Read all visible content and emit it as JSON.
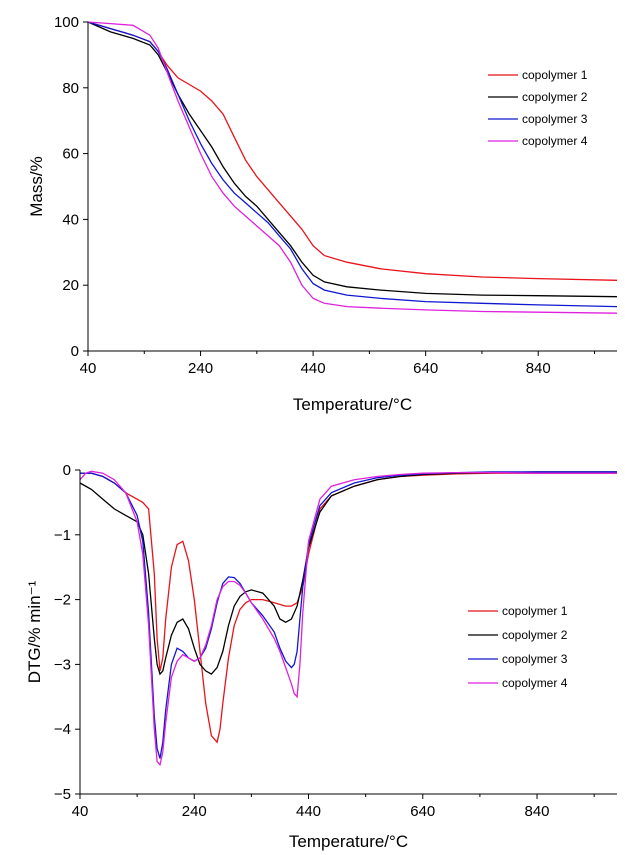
{
  "chart_data": [
    {
      "type": "line",
      "title": "",
      "xlabel": "Temperature/°C",
      "ylabel": "Mass/%",
      "xlim": [
        40,
        980
      ],
      "ylim": [
        0,
        100
      ],
      "xticks": [
        "40",
        "240",
        "440",
        "640",
        "840"
      ],
      "yticks": [
        "0",
        "20",
        "40",
        "60",
        "80",
        "100"
      ],
      "legend": "right",
      "grid": false,
      "series": [
        {
          "name": "copolymer 1",
          "color": "#e8131b",
          "x": [
            40,
            80,
            120,
            150,
            165,
            180,
            200,
            220,
            240,
            260,
            280,
            300,
            320,
            340,
            360,
            380,
            400,
            420,
            440,
            460,
            500,
            560,
            640,
            740,
            840,
            980
          ],
          "y": [
            100,
            98,
            96,
            94,
            91,
            87,
            83,
            81,
            79,
            76,
            72,
            65,
            58,
            53,
            49,
            45,
            41,
            37,
            32,
            29,
            27,
            25,
            23.5,
            22.5,
            22,
            21.5
          ]
        },
        {
          "name": "copolymer 2",
          "color": "#000000",
          "x": [
            40,
            80,
            120,
            150,
            165,
            180,
            200,
            220,
            240,
            260,
            280,
            300,
            320,
            340,
            360,
            380,
            400,
            420,
            440,
            460,
            500,
            560,
            640,
            740,
            840,
            980
          ],
          "y": [
            100,
            97,
            95,
            93,
            90,
            85,
            78,
            72,
            67,
            62,
            56,
            51,
            47,
            44,
            40,
            36,
            32,
            27,
            23,
            21,
            19.5,
            18.5,
            17.5,
            17,
            16.8,
            16.5
          ]
        },
        {
          "name": "copolymer 3",
          "color": "#1018cf",
          "x": [
            40,
            80,
            120,
            150,
            165,
            180,
            200,
            220,
            240,
            260,
            280,
            300,
            320,
            340,
            360,
            380,
            400,
            420,
            440,
            460,
            500,
            560,
            640,
            740,
            840,
            980
          ],
          "y": [
            100,
            98,
            96,
            94,
            91,
            86,
            78,
            70,
            63,
            57,
            52,
            48,
            45,
            42,
            39,
            35,
            31,
            25,
            20.5,
            18.5,
            17,
            16,
            15,
            14.5,
            14,
            13.5
          ]
        },
        {
          "name": "copolymer 4",
          "color": "#dd22dd",
          "x": [
            40,
            80,
            120,
            150,
            165,
            180,
            200,
            220,
            240,
            260,
            280,
            300,
            320,
            340,
            360,
            380,
            400,
            420,
            440,
            460,
            500,
            560,
            640,
            740,
            840,
            980
          ],
          "y": [
            100,
            99.5,
            99,
            96,
            92,
            85,
            76,
            68,
            60,
            53,
            48,
            44,
            41,
            38,
            35,
            32,
            27,
            20,
            16,
            14.5,
            13.5,
            13,
            12.5,
            12,
            11.8,
            11.5
          ]
        }
      ]
    },
    {
      "type": "line",
      "title": "",
      "xlabel": "Temperature/°C",
      "ylabel": "DTG/% min⁻¹",
      "xlim": [
        40,
        980
      ],
      "ylim": [
        -5,
        0
      ],
      "xticks": [
        "40",
        "240",
        "440",
        "640",
        "840"
      ],
      "yticks": [
        "0",
        "−1",
        "−2",
        "−3",
        "−4",
        "−5"
      ],
      "legend": "right",
      "grid": false,
      "series": [
        {
          "name": "copolymer 1",
          "color": "#e8131b",
          "x": [
            40,
            60,
            80,
            100,
            120,
            140,
            150,
            160,
            170,
            175,
            180,
            185,
            190,
            200,
            210,
            220,
            230,
            240,
            250,
            260,
            270,
            280,
            285,
            290,
            300,
            310,
            320,
            330,
            340,
            360,
            380,
            400,
            410,
            420,
            430,
            440,
            460,
            480,
            520,
            560,
            600,
            640,
            700,
            760,
            840,
            900,
            980
          ],
          "y": [
            -0.05,
            -0.05,
            -0.1,
            -0.2,
            -0.35,
            -0.45,
            -0.5,
            -0.6,
            -1.6,
            -2.6,
            -3.1,
            -2.9,
            -2.3,
            -1.5,
            -1.15,
            -1.1,
            -1.4,
            -2.0,
            -2.8,
            -3.6,
            -4.1,
            -4.2,
            -4.0,
            -3.6,
            -2.9,
            -2.4,
            -2.15,
            -2.05,
            -2.0,
            -2.0,
            -2.05,
            -2.1,
            -2.1,
            -2.05,
            -1.8,
            -1.3,
            -0.6,
            -0.4,
            -0.25,
            -0.15,
            -0.1,
            -0.08,
            -0.06,
            -0.05,
            -0.05,
            -0.05,
            -0.05
          ]
        },
        {
          "name": "copolymer 2",
          "color": "#000000",
          "x": [
            40,
            60,
            80,
            100,
            120,
            140,
            150,
            160,
            170,
            175,
            180,
            185,
            190,
            200,
            210,
            220,
            230,
            240,
            250,
            260,
            270,
            280,
            290,
            300,
            310,
            320,
            330,
            340,
            360,
            380,
            390,
            400,
            410,
            420,
            430,
            440,
            460,
            480,
            520,
            560,
            600,
            640,
            700,
            760,
            840,
            900,
            980
          ],
          "y": [
            -0.2,
            -0.3,
            -0.45,
            -0.6,
            -0.7,
            -0.8,
            -1.0,
            -1.6,
            -2.6,
            -3.0,
            -3.15,
            -3.1,
            -2.9,
            -2.55,
            -2.35,
            -2.3,
            -2.45,
            -2.75,
            -3.0,
            -3.1,
            -3.15,
            -3.05,
            -2.8,
            -2.4,
            -2.1,
            -1.95,
            -1.88,
            -1.85,
            -1.9,
            -2.1,
            -2.3,
            -2.35,
            -2.3,
            -2.1,
            -1.7,
            -1.2,
            -0.65,
            -0.4,
            -0.25,
            -0.15,
            -0.1,
            -0.07,
            -0.05,
            -0.04,
            -0.03,
            -0.03,
            -0.03
          ]
        },
        {
          "name": "copolymer 3",
          "color": "#1018cf",
          "x": [
            40,
            60,
            80,
            100,
            120,
            140,
            150,
            160,
            170,
            175,
            180,
            185,
            190,
            200,
            210,
            220,
            230,
            240,
            250,
            260,
            270,
            280,
            290,
            300,
            310,
            320,
            330,
            340,
            360,
            380,
            390,
            400,
            410,
            415,
            420,
            425,
            430,
            440,
            460,
            480,
            520,
            560,
            600,
            640,
            700,
            760,
            840,
            900,
            980
          ],
          "y": [
            -0.05,
            -0.05,
            -0.1,
            -0.2,
            -0.35,
            -0.7,
            -1.1,
            -2.2,
            -3.8,
            -4.3,
            -4.45,
            -4.2,
            -3.7,
            -3.0,
            -2.75,
            -2.8,
            -2.9,
            -2.95,
            -2.9,
            -2.75,
            -2.45,
            -2.05,
            -1.75,
            -1.65,
            -1.66,
            -1.75,
            -1.9,
            -2.05,
            -2.25,
            -2.5,
            -2.75,
            -2.95,
            -3.05,
            -3.0,
            -2.8,
            -2.3,
            -1.8,
            -1.15,
            -0.55,
            -0.35,
            -0.2,
            -0.12,
            -0.08,
            -0.06,
            -0.04,
            -0.03,
            -0.03,
            -0.03,
            -0.03
          ]
        },
        {
          "name": "copolymer 4",
          "color": "#dd22dd",
          "x": [
            40,
            50,
            60,
            80,
            100,
            120,
            140,
            150,
            160,
            170,
            175,
            180,
            185,
            190,
            200,
            210,
            220,
            230,
            240,
            250,
            260,
            270,
            280,
            290,
            300,
            310,
            320,
            330,
            340,
            360,
            380,
            390,
            400,
            410,
            415,
            420,
            425,
            430,
            440,
            460,
            480,
            520,
            560,
            600,
            640,
            700,
            760,
            840,
            900,
            980
          ],
          "y": [
            -0.15,
            -0.05,
            -0.02,
            -0.05,
            -0.15,
            -0.35,
            -0.8,
            -1.3,
            -2.4,
            -4.0,
            -4.5,
            -4.55,
            -4.35,
            -3.9,
            -3.2,
            -2.95,
            -2.85,
            -2.9,
            -2.95,
            -2.9,
            -2.7,
            -2.4,
            -2.0,
            -1.8,
            -1.72,
            -1.72,
            -1.78,
            -1.9,
            -2.05,
            -2.3,
            -2.6,
            -2.8,
            -3.05,
            -3.3,
            -3.45,
            -3.5,
            -3.0,
            -2.2,
            -1.1,
            -0.45,
            -0.25,
            -0.15,
            -0.1,
            -0.07,
            -0.05,
            -0.04,
            -0.04,
            -0.05,
            -0.05,
            -0.05
          ]
        }
      ]
    }
  ]
}
